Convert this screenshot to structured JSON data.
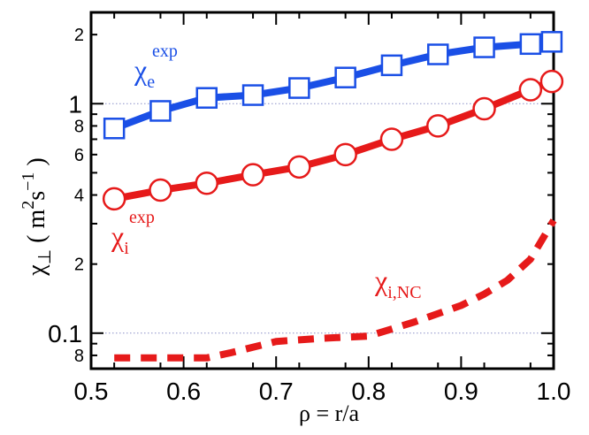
{
  "chart_data": {
    "type": "line",
    "xlabel": "ρ = r/a",
    "ylabel_main": "χ",
    "ylabel_sub": "⊥",
    "ylabel_units_open": "(",
    "ylabel_units_m": "m",
    "ylabel_units_m_exp": "2",
    "ylabel_units_s": "s",
    "ylabel_units_s_exp": "−1",
    "ylabel_units_close": ")",
    "xlim": [
      0.5,
      1.0
    ],
    "ylim": [
      0.07,
      2.5
    ],
    "yscale": "log",
    "x_ticks": [
      {
        "value": 0.5,
        "label": "0.5"
      },
      {
        "value": 0.6,
        "label": "0.6"
      },
      {
        "value": 0.7,
        "label": "0.7"
      },
      {
        "value": 0.8,
        "label": "0.8"
      },
      {
        "value": 0.9,
        "label": "0.9"
      },
      {
        "value": 1.0,
        "label": "1.0"
      }
    ],
    "y_major_ticks": [
      {
        "value": 0.1,
        "label": "0.1"
      },
      {
        "value": 1,
        "label": "1"
      }
    ],
    "y_minor_ticks": [
      {
        "value": 0.08,
        "label": "8"
      },
      {
        "value": 0.2,
        "label": "2"
      },
      {
        "value": 0.4,
        "label": "4"
      },
      {
        "value": 0.6,
        "label": "6"
      },
      {
        "value": 0.8,
        "label": "8"
      },
      {
        "value": 2,
        "label": "2"
      }
    ],
    "reference_lines": [
      0.1,
      1
    ],
    "series": [
      {
        "label_main": "χ",
        "label_sub": "e",
        "label_sup": "exp",
        "color": "#1a4fe6",
        "marker": "square",
        "x": [
          0.525,
          0.575,
          0.625,
          0.675,
          0.725,
          0.775,
          0.825,
          0.875,
          0.925,
          0.975,
          0.998
        ],
        "y": [
          0.78,
          0.93,
          1.06,
          1.09,
          1.17,
          1.3,
          1.47,
          1.64,
          1.76,
          1.82,
          1.86
        ]
      },
      {
        "label_main": "χ",
        "label_sub": "i",
        "label_sup": "exp",
        "color": "#e61a1a",
        "marker": "circle",
        "x": [
          0.525,
          0.575,
          0.625,
          0.675,
          0.725,
          0.775,
          0.825,
          0.875,
          0.925,
          0.975,
          0.998
        ],
        "y": [
          0.385,
          0.42,
          0.45,
          0.49,
          0.53,
          0.6,
          0.7,
          0.8,
          0.95,
          1.15,
          1.25
        ]
      },
      {
        "label_main": "χ",
        "label_sub": "i,NC",
        "color": "#e61a1a",
        "dashed": true,
        "x": [
          0.525,
          0.55,
          0.6,
          0.625,
          0.65,
          0.7,
          0.75,
          0.8,
          0.85,
          0.9,
          0.925,
          0.95,
          0.975,
          1.0
        ],
        "y": [
          0.078,
          0.078,
          0.078,
          0.078,
          0.082,
          0.092,
          0.095,
          0.097,
          0.112,
          0.132,
          0.148,
          0.17,
          0.21,
          0.31
        ]
      }
    ]
  }
}
